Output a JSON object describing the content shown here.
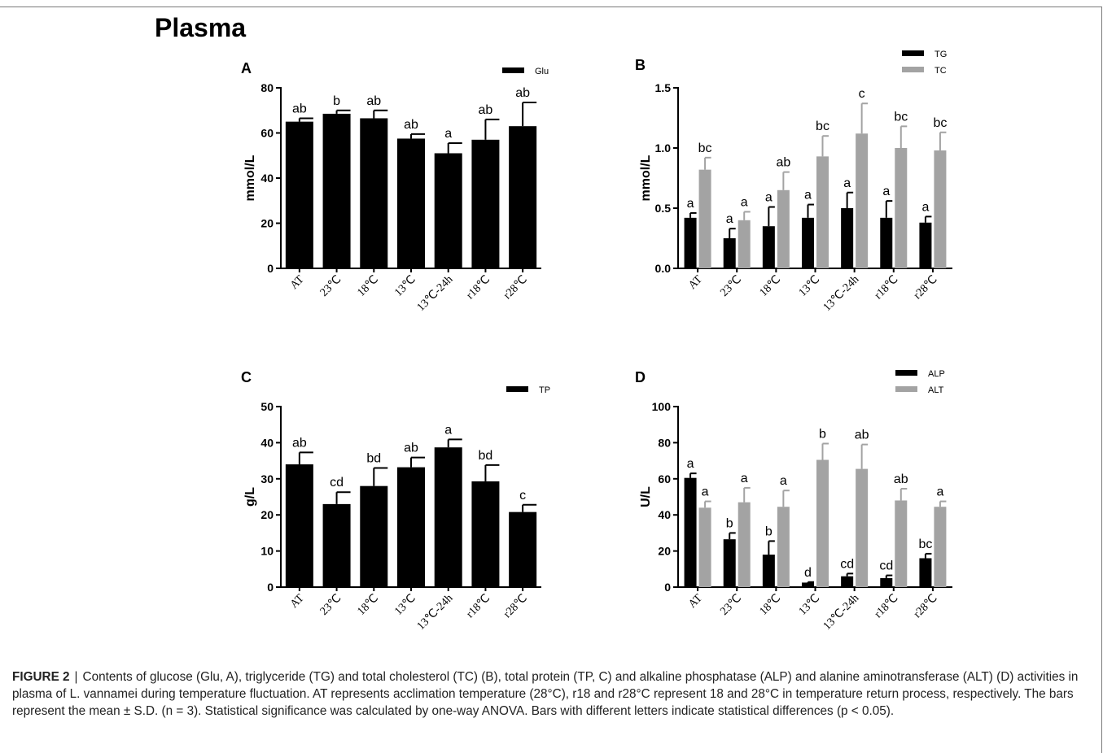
{
  "page": {
    "title": "Plasma"
  },
  "caption": {
    "label": "FIGURE 2",
    "separator": "|",
    "text": "Contents of glucose (Glu, A), triglyceride (TG) and total cholesterol (TC) (B), total protein (TP, C) and alkaline phosphatase (ALP) and alanine aminotransferase (ALT) (D) activities in plasma of L. vannamei during temperature fluctuation. AT represents acclimation temperature (28°C), r18 and r28°C represent 18 and 28°C in temperature return process, respectively. The bars represent the mean ± S.D. (n = 3). Statistical significance was calculated by one-way ANOVA. Bars with different letters indicate statistical differences (p < 0.05)."
  },
  "colors": {
    "series1": "#000000",
    "series2": "#a3a3a3"
  },
  "chart_data": [
    {
      "panel": "A",
      "type": "bar",
      "categories": [
        "AT",
        "23℃",
        "18℃",
        "13℃",
        "13℃-24h",
        "r18℃",
        "r28℃"
      ],
      "ylabel": "mmol/L",
      "ylim": [
        0,
        80
      ],
      "yticks": [
        0,
        20,
        40,
        60,
        80
      ],
      "legend_position": "top-right",
      "series": [
        {
          "name": "Glu",
          "color": "#000000",
          "values": [
            65,
            68.5,
            66.5,
            57.5,
            51,
            57,
            63
          ],
          "errors": [
            1.5,
            1.5,
            3.5,
            2,
            4.5,
            9,
            10.5
          ],
          "letters": [
            "ab",
            "b",
            "ab",
            "ab",
            "a",
            "ab",
            "ab"
          ]
        }
      ]
    },
    {
      "panel": "B",
      "type": "bar",
      "categories": [
        "AT",
        "23℃",
        "18℃",
        "13℃",
        "13℃-24h",
        "r18℃",
        "r28℃"
      ],
      "ylabel": "mmol/L",
      "ylim": [
        0,
        1.5
      ],
      "yticks": [
        0.0,
        0.5,
        1.0,
        1.5
      ],
      "legend_position": "top-right",
      "series": [
        {
          "name": "TG",
          "color": "#000000",
          "values": [
            0.42,
            0.25,
            0.35,
            0.42,
            0.5,
            0.42,
            0.38
          ],
          "errors": [
            0.04,
            0.08,
            0.16,
            0.11,
            0.13,
            0.14,
            0.05
          ],
          "letters": [
            "a",
            "a",
            "a",
            "a",
            "a",
            "a",
            "a"
          ]
        },
        {
          "name": "TC",
          "color": "#a3a3a3",
          "values": [
            0.82,
            0.4,
            0.65,
            0.93,
            1.12,
            1.0,
            0.98
          ],
          "errors": [
            0.1,
            0.07,
            0.15,
            0.17,
            0.25,
            0.18,
            0.15
          ],
          "letters": [
            "bc",
            "a",
            "ab",
            "bc",
            "c",
            "bc",
            "bc"
          ]
        }
      ]
    },
    {
      "panel": "C",
      "type": "bar",
      "categories": [
        "AT",
        "23℃",
        "18℃",
        "13℃",
        "13℃-24h",
        "r18℃",
        "r28℃"
      ],
      "ylabel": "g/L",
      "ylim": [
        0,
        50
      ],
      "yticks": [
        0,
        10,
        20,
        30,
        40,
        50
      ],
      "legend_position": "top-right",
      "series": [
        {
          "name": "TP",
          "color": "#000000",
          "values": [
            34,
            23,
            28,
            33.2,
            38.7,
            29.3,
            20.8
          ],
          "errors": [
            3.3,
            3.3,
            5,
            2.7,
            2.2,
            4.5,
            2
          ],
          "letters": [
            "ab",
            "cd",
            "bd",
            "ab",
            "a",
            "bd",
            "c"
          ]
        }
      ]
    },
    {
      "panel": "D",
      "type": "bar",
      "categories": [
        "AT",
        "23℃",
        "18℃",
        "13℃",
        "13℃-24h",
        "r18℃",
        "r28℃"
      ],
      "ylabel": "U/L",
      "ylim": [
        0,
        100
      ],
      "yticks": [
        0,
        20,
        40,
        60,
        80,
        100
      ],
      "legend_position": "top-right",
      "series": [
        {
          "name": "ALP",
          "color": "#000000",
          "values": [
            60.5,
            26.5,
            18,
            2.5,
            6,
            5,
            16
          ],
          "errors": [
            2.5,
            3.5,
            7.5,
            0.3,
            1.5,
            1.5,
            2.5
          ],
          "letters": [
            "a",
            "b",
            "b",
            "d",
            "cd",
            "cd",
            "bc"
          ]
        },
        {
          "name": "ALT",
          "color": "#a3a3a3",
          "values": [
            44,
            47,
            44.5,
            70.5,
            65.5,
            48,
            44.5
          ],
          "errors": [
            3.5,
            8,
            9,
            9,
            13.5,
            6.5,
            3
          ],
          "letters": [
            "a",
            "a",
            "a",
            "b",
            "ab",
            "ab",
            "a"
          ]
        }
      ]
    }
  ]
}
